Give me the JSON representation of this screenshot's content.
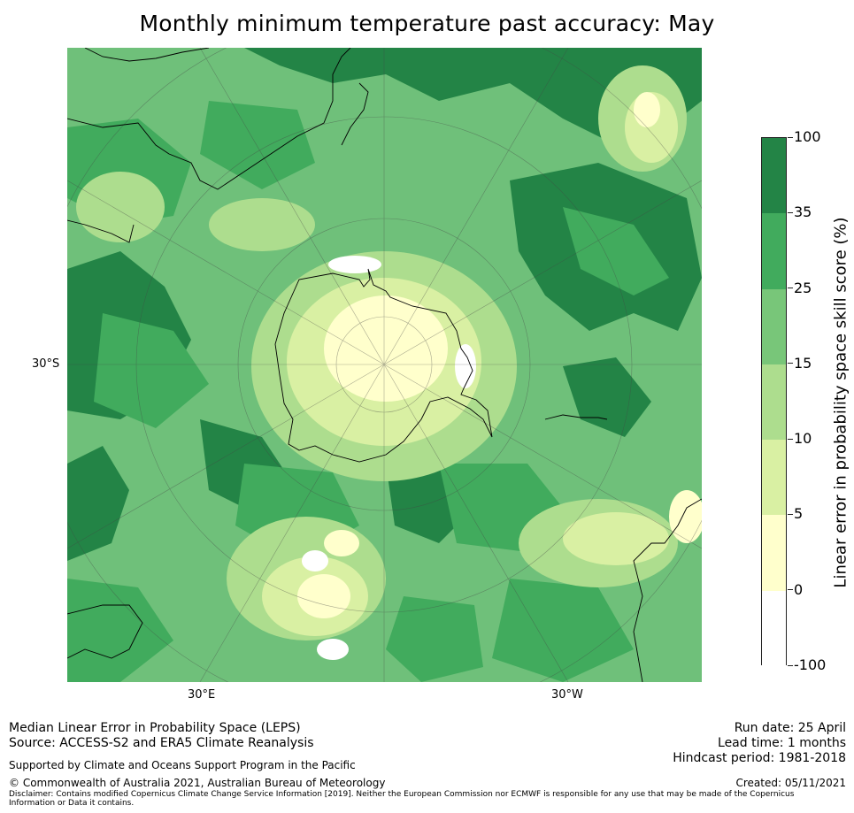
{
  "title": "Monthly minimum temperature past accuracy: May",
  "axes": {
    "lat_label": "30°S",
    "lon_label_left": "30°E",
    "lon_label_right": "30°W"
  },
  "colorbar": {
    "label": "Linear error in probability space skill score (%)",
    "bins": [
      {
        "label": "100",
        "color": "#238446"
      },
      {
        "label": "35",
        "color": "#41ab5d"
      },
      {
        "label": "25",
        "color": "#78c679"
      },
      {
        "label": "15",
        "color": "#addd8e"
      },
      {
        "label": "10",
        "color": "#d9f0a3"
      },
      {
        "label": "5",
        "color": "#ffffcc"
      },
      {
        "label": "0",
        "color": "#ffffff"
      },
      {
        "label": "-100",
        "color": ""
      }
    ]
  },
  "footer": {
    "line1": "Median Linear Error in Probability Space (LEPS)",
    "line2": "Source: ACCESS-S2 and ERA5 Climate Reanalysis",
    "support": "Supported by Climate and Oceans Support Program in the Pacific",
    "copyright": "© Commonwealth of Australia 2021, Australian Bureau of Meteorology",
    "disclaimer1": "Disclaimer: Contains modified Copernicus Climate Change Service Information [2019]. Neither the European Commission nor ECMWF is responsible for any use that may be made of the Copernicus",
    "disclaimer2": "Information or Data it contains.",
    "run_date": "Run date: 25 April",
    "lead_time": "Lead time: 1 months",
    "hindcast": "Hindcast period: 1981-2018",
    "created": "Created: 05/11/2021"
  }
}
